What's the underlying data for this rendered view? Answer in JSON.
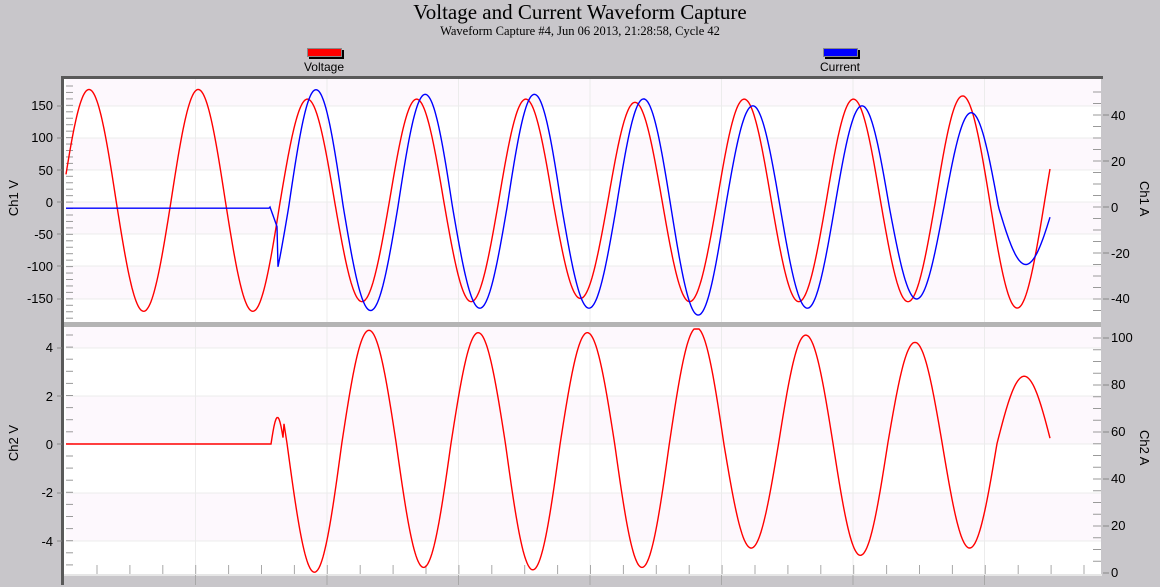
{
  "header": {
    "title": "Voltage and Current Waveform Capture",
    "subtitle": "Waveform Capture #4, Jun 06 2013, 21:28:58,  Cycle 42"
  },
  "legend": [
    {
      "label": "Voltage",
      "color": "#ff0000"
    },
    {
      "label": "Current",
      "color": "#0000ff"
    }
  ],
  "axes": {
    "ch1_left_label": "Ch1 V",
    "ch1_right_label": "Ch1 A",
    "ch2_left_label": "Ch2 V",
    "ch2_right_label": "Ch2 A",
    "ch1_left_ticks": [
      "150",
      "100",
      "50",
      "0",
      "-50",
      "-100",
      "-150"
    ],
    "ch1_right_ticks": [
      "40",
      "20",
      "0",
      "-20",
      "-40"
    ],
    "ch2_left_ticks": [
      "4",
      "2",
      "0",
      "-2",
      "-4"
    ],
    "ch2_right_ticks": [
      "100",
      "80",
      "60",
      "40",
      "20",
      "0"
    ]
  },
  "chart_data": [
    {
      "type": "line",
      "title": "Voltage and Current Waveform Capture",
      "subtitle": "Waveform Capture #4, Jun 06 2013, 21:28:58,  Cycle 42",
      "panel": "Ch1",
      "ylabel_left": "Ch1 V",
      "ylabel_right": "Ch1 A",
      "ylim_left": [
        -185,
        185
      ],
      "ylim_right": [
        -52,
        54
      ],
      "grid": true,
      "legend_position": "top",
      "series": [
        {
          "name": "Voltage",
          "axis": "left",
          "color": "#ff0000",
          "description": "Continuous ~60 Hz sinusoid, ~9.5 cycles across window",
          "amplitude_V": 170,
          "peaks_V": [
            175,
            175,
            160,
            160,
            160,
            155,
            160,
            160,
            165
          ],
          "troughs_V": [
            -170,
            -170,
            -155,
            -155,
            -150,
            -155,
            -155,
            -155,
            -165
          ]
        },
        {
          "name": "Current",
          "axis": "right",
          "color": "#0000ff",
          "description": "Near 0 A (~ -0.5 A) until inrush at ~x=270px, then sinusoid lagging voltage",
          "pre_event_A": -0.5,
          "peaks_A": [
            51,
            49,
            49,
            47,
            44,
            44,
            41
          ],
          "troughs_A": [
            -45,
            -44,
            -44,
            -47,
            -44,
            -40,
            -25
          ]
        }
      ]
    },
    {
      "type": "line",
      "panel": "Ch2",
      "ylabel_left": "Ch2 V",
      "ylabel_right": "Ch2 A",
      "ylim_left": [
        -5.3,
        4.9
      ],
      "ylim_right": [
        0,
        102
      ],
      "grid": true,
      "series": [
        {
          "name": "Voltage",
          "axis": "left",
          "color": "#ff0000",
          "description": "0 V until event at ~x=270px, small bump to ~1 V then sinusoid",
          "pre_event_V": 0,
          "peaks_V": [
            4.7,
            4.6,
            4.6,
            4.8,
            4.5,
            4.2,
            2.8
          ],
          "troughs_V": [
            -5.3,
            -5.1,
            -5.2,
            -5.1,
            -4.3,
            -4.6,
            -4.3
          ]
        }
      ]
    }
  ]
}
